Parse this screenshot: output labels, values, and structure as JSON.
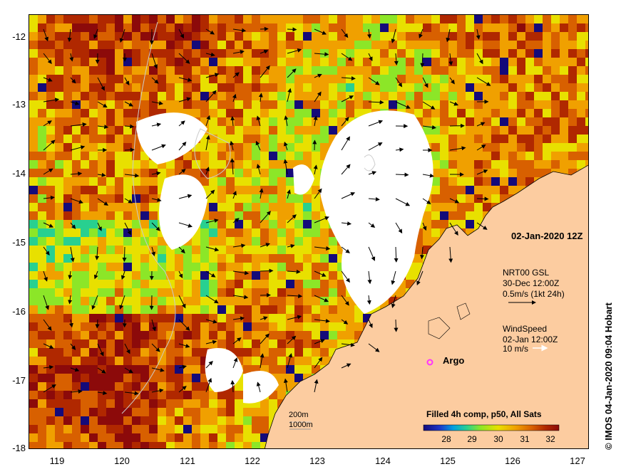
{
  "map": {
    "date_label": "02-Jan-2020 12Z",
    "current": {
      "title": "NRT00 GSL",
      "time": "30-Dec 12:00Z",
      "scale": "0.5m/s (1kt 24h)"
    },
    "wind": {
      "title": "WindSpeed",
      "time": "02-Jan 12:00Z",
      "scale": "10 m/s"
    },
    "argo_label": "Argo",
    "depth_labels": [
      "200m",
      "1000m"
    ],
    "colorbar": {
      "title": "Filled 4h comp, p50, All Sats",
      "ticks": [
        "28",
        "29",
        "30",
        "31",
        "32"
      ],
      "colors": [
        "#140a7a",
        "#1d36c8",
        "#00a0e0",
        "#28d090",
        "#8ce628",
        "#e8e000",
        "#f0a000",
        "#d86000",
        "#b02800",
        "#8c0a0a"
      ]
    },
    "credit": "© IMOS 04-Jan-2020 09:04 Hobart",
    "y_ticks": [
      "-12",
      "-13",
      "-14",
      "-15",
      "-16",
      "-17",
      "-18"
    ],
    "x_ticks": [
      "119",
      "120",
      "121",
      "122",
      "123",
      "124",
      "125",
      "126",
      "127"
    ],
    "colors": {
      "land": "#fccca0",
      "cloud": "#ffffff",
      "argo": "#ff33ff"
    }
  }
}
